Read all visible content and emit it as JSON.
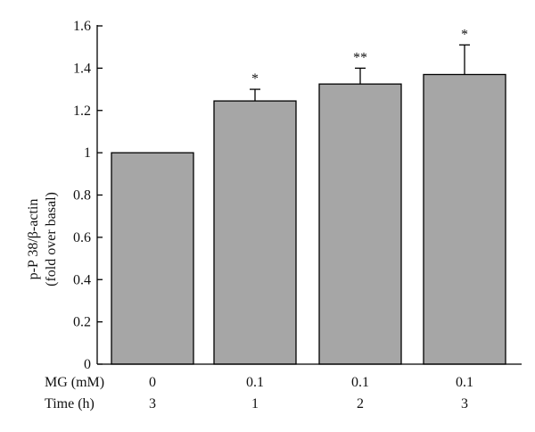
{
  "chart_data": {
    "type": "bar",
    "title": "",
    "ylabel_lines": [
      "p-P 38/β-actin",
      "(fold over basal)"
    ],
    "ylim": [
      0,
      1.6
    ],
    "yticks": [
      0,
      0.2,
      0.4,
      0.6,
      0.8,
      1,
      1.2,
      1.4,
      1.6
    ],
    "ytick_labels": [
      "0",
      "0.2",
      "0.4",
      "0.6",
      "0.8",
      "1",
      "1.2",
      "1.4",
      "1.6"
    ],
    "grid": false,
    "bar_color": "#a6a6a6",
    "condition_rows": [
      {
        "label": "MG (mM)",
        "values": [
          "0",
          "0.1",
          "0.1",
          "0.1"
        ]
      },
      {
        "label": "Time (h)",
        "values": [
          "3",
          "1",
          "2",
          "3"
        ]
      }
    ],
    "values": [
      1.0,
      1.245,
      1.325,
      1.37
    ],
    "errors": [
      0,
      0.055,
      0.075,
      0.14
    ],
    "significance": [
      "",
      "*",
      "**",
      "*"
    ]
  }
}
